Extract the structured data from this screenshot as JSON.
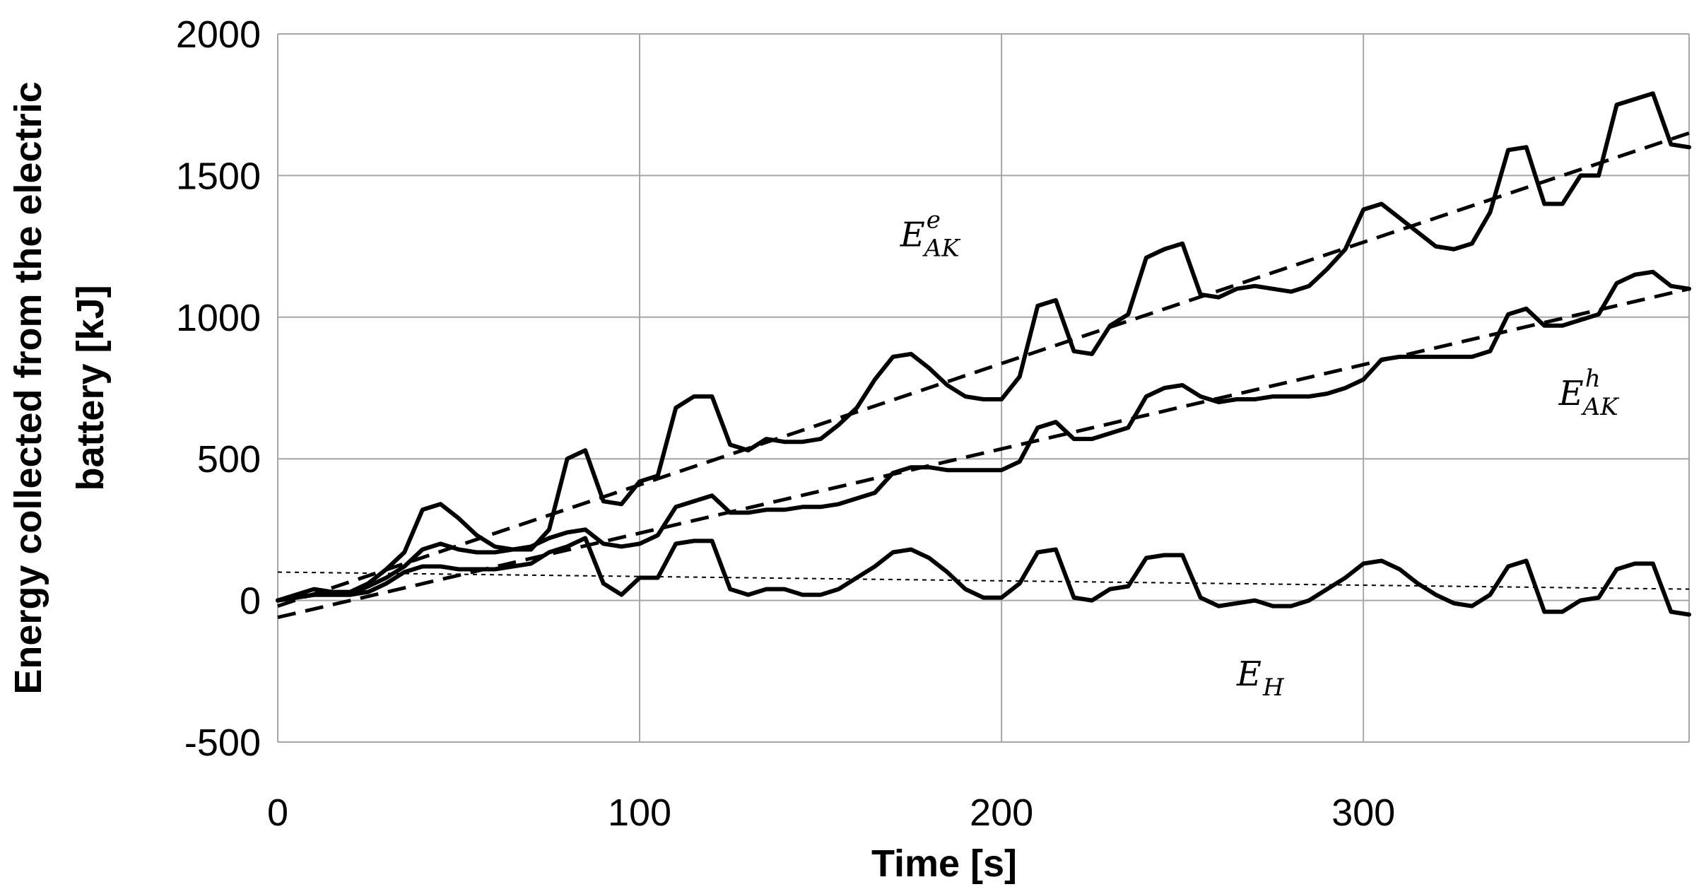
{
  "chart_data": {
    "type": "line",
    "title": "",
    "xlabel": "Time [s]",
    "ylabel": [
      "Energy collected from the electric",
      "battery [kJ]"
    ],
    "xlim": [
      0,
      390
    ],
    "ylim": [
      -500,
      2000
    ],
    "xticks": [
      0,
      100,
      200,
      300
    ],
    "yticks": [
      -500,
      0,
      500,
      1000,
      1500,
      2000
    ],
    "xtick_labels": [
      "0",
      "100",
      "200",
      "300"
    ],
    "ytick_labels": [
      "-500",
      "0",
      "500",
      "1000",
      "1500",
      "2000"
    ],
    "grid": true,
    "series": [
      {
        "label": "E_AK^e",
        "style": "solid",
        "x": [
          0,
          5,
          10,
          15,
          20,
          25,
          30,
          35,
          40,
          45,
          50,
          55,
          60,
          65,
          70,
          75,
          80,
          85,
          90,
          95,
          100,
          105,
          110,
          115,
          120,
          125,
          130,
          135,
          140,
          145,
          150,
          155,
          160,
          165,
          170,
          175,
          180,
          185,
          190,
          195,
          200,
          205,
          210,
          215,
          220,
          225,
          230,
          235,
          240,
          245,
          250,
          255,
          260,
          265,
          270,
          275,
          280,
          285,
          290,
          295,
          300,
          305,
          310,
          315,
          320,
          325,
          330,
          335,
          340,
          345,
          350,
          355,
          360,
          365,
          370,
          375,
          380,
          385,
          390
        ],
        "y": [
          0,
          20,
          40,
          30,
          30,
          60,
          110,
          170,
          320,
          340,
          290,
          230,
          190,
          180,
          180,
          250,
          500,
          530,
          350,
          340,
          420,
          440,
          680,
          720,
          720,
          550,
          530,
          570,
          560,
          560,
          570,
          620,
          680,
          780,
          860,
          870,
          820,
          760,
          720,
          710,
          710,
          790,
          1040,
          1060,
          880,
          870,
          970,
          1010,
          1210,
          1240,
          1260,
          1080,
          1070,
          1100,
          1110,
          1100,
          1090,
          1110,
          1170,
          1240,
          1380,
          1400,
          1350,
          1300,
          1250,
          1240,
          1260,
          1370,
          1590,
          1600,
          1400,
          1400,
          1500,
          1500,
          1750,
          1770,
          1790,
          1610,
          1600
        ]
      },
      {
        "label": "E_AK^h",
        "style": "solid",
        "x": [
          0,
          5,
          10,
          15,
          20,
          25,
          30,
          35,
          40,
          45,
          50,
          55,
          60,
          65,
          70,
          75,
          80,
          85,
          90,
          95,
          100,
          105,
          110,
          115,
          120,
          125,
          130,
          135,
          140,
          145,
          150,
          155,
          160,
          165,
          170,
          175,
          180,
          185,
          190,
          195,
          200,
          205,
          210,
          215,
          220,
          225,
          230,
          235,
          240,
          245,
          250,
          255,
          260,
          265,
          270,
          275,
          280,
          285,
          290,
          295,
          300,
          305,
          310,
          315,
          320,
          325,
          330,
          335,
          340,
          345,
          350,
          355,
          360,
          365,
          370,
          375,
          380,
          385,
          390
        ],
        "y": [
          0,
          10,
          20,
          20,
          20,
          50,
          80,
          120,
          180,
          200,
          180,
          170,
          170,
          180,
          190,
          220,
          240,
          250,
          200,
          190,
          200,
          230,
          330,
          350,
          370,
          310,
          310,
          320,
          320,
          330,
          330,
          340,
          360,
          380,
          450,
          470,
          470,
          460,
          460,
          460,
          460,
          490,
          610,
          630,
          570,
          570,
          590,
          610,
          720,
          750,
          760,
          720,
          700,
          710,
          710,
          720,
          720,
          720,
          730,
          750,
          780,
          850,
          860,
          860,
          860,
          860,
          860,
          880,
          1010,
          1030,
          970,
          970,
          990,
          1010,
          1120,
          1150,
          1160,
          1110,
          1100
        ]
      },
      {
        "label": "E_H",
        "style": "solid",
        "x": [
          0,
          5,
          10,
          15,
          20,
          25,
          30,
          35,
          40,
          45,
          50,
          55,
          60,
          65,
          70,
          75,
          80,
          85,
          90,
          95,
          100,
          105,
          110,
          115,
          120,
          125,
          130,
          135,
          140,
          145,
          150,
          155,
          160,
          165,
          170,
          175,
          180,
          185,
          190,
          195,
          200,
          205,
          210,
          215,
          220,
          225,
          230,
          235,
          240,
          245,
          250,
          255,
          260,
          265,
          270,
          275,
          280,
          285,
          290,
          295,
          300,
          305,
          310,
          315,
          320,
          325,
          330,
          335,
          340,
          345,
          350,
          355,
          360,
          365,
          370,
          375,
          380,
          385,
          390
        ],
        "y": [
          0,
          10,
          20,
          20,
          20,
          30,
          60,
          100,
          120,
          120,
          110,
          110,
          110,
          120,
          130,
          170,
          190,
          220,
          60,
          20,
          80,
          80,
          200,
          210,
          210,
          40,
          20,
          40,
          40,
          20,
          20,
          40,
          80,
          120,
          170,
          180,
          150,
          100,
          40,
          10,
          10,
          60,
          170,
          180,
          10,
          0,
          40,
          50,
          150,
          160,
          160,
          10,
          -20,
          -10,
          0,
          -20,
          -20,
          0,
          40,
          80,
          130,
          140,
          110,
          60,
          20,
          -10,
          -20,
          20,
          120,
          140,
          -40,
          -40,
          0,
          10,
          110,
          130,
          130,
          -40,
          -50
        ]
      },
      {
        "label": "E_AK^e trend",
        "style": "dashed",
        "x": [
          0,
          390
        ],
        "y": [
          -20,
          1650
        ]
      },
      {
        "label": "E_AK^h trend",
        "style": "dashed",
        "x": [
          0,
          390
        ],
        "y": [
          -60,
          1100
        ]
      },
      {
        "label": "E_H trend",
        "style": "dotted",
        "x": [
          0,
          390
        ],
        "y": [
          100,
          40
        ]
      }
    ],
    "annotations": [
      {
        "id": "ak_e",
        "base": "E",
        "sup": "e",
        "sub": "AK",
        "x": 172,
        "y": 1250
      },
      {
        "id": "ak_h",
        "base": "E",
        "sup": "h",
        "sub": "AK",
        "x": 354,
        "y": 690
      },
      {
        "id": "eh",
        "base": "E",
        "sup": "",
        "sub": "H",
        "x": 265,
        "y": -300
      }
    ]
  }
}
